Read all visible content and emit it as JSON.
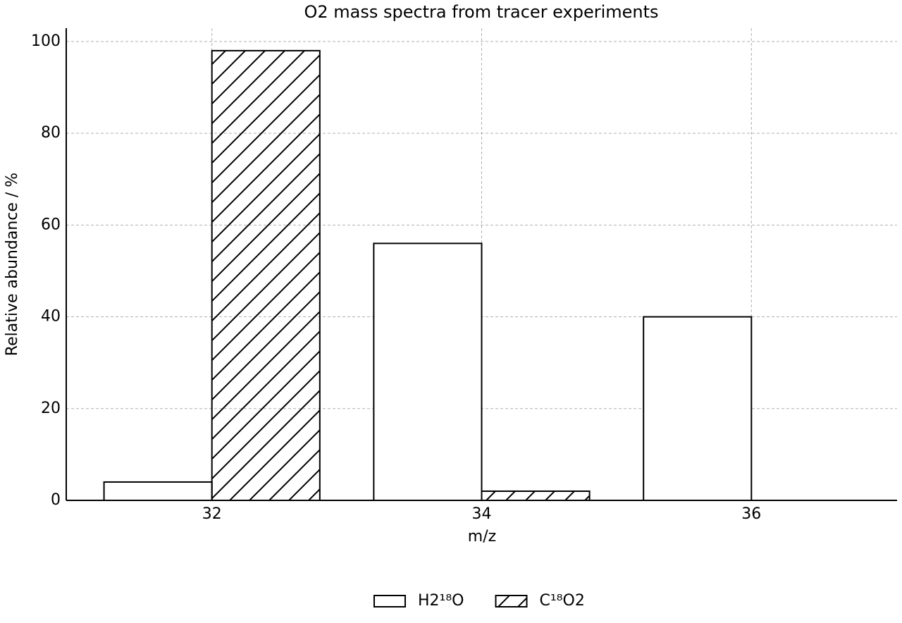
{
  "chart_data": {
    "type": "bar",
    "title": "O2 mass spectra from tracer experiments",
    "x_label": "m/z",
    "y_label": "Relative abundance / %",
    "categories": [
      "32",
      "34",
      "36"
    ],
    "series": [
      {
        "name": "H2¹⁸O",
        "color": "#ffffff",
        "values": [
          4,
          56,
          40
        ]
      },
      {
        "name": "C¹⁸O2",
        "color": "#ffffff",
        "hatch": "/",
        "values": [
          98,
          2,
          0
        ]
      }
    ],
    "ylim": [
      0,
      102.9
    ],
    "yticks": [
      0,
      20,
      40,
      60,
      80,
      100
    ],
    "grid": true,
    "legend": "bottom"
  }
}
